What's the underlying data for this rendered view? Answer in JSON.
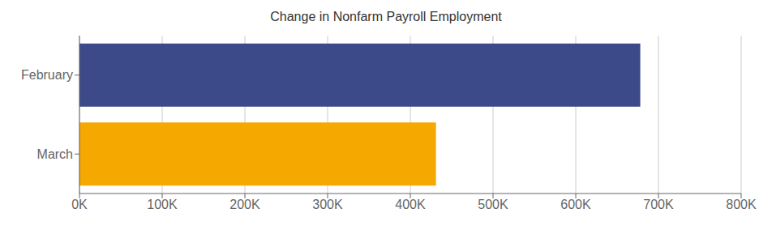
{
  "chart_data": {
    "type": "bar",
    "orientation": "horizontal",
    "title": "Change in Nonfarm Payroll Employment",
    "categories": [
      "March",
      "February"
    ],
    "values": [
      431000,
      678000
    ],
    "colors": [
      "#f5a800",
      "#3d4a8a"
    ],
    "xlim": [
      0,
      800000
    ],
    "xticks": [
      {
        "value": 0,
        "label": "0K"
      },
      {
        "value": 100000,
        "label": "100K"
      },
      {
        "value": 200000,
        "label": "200K"
      },
      {
        "value": 300000,
        "label": "300K"
      },
      {
        "value": 400000,
        "label": "400K"
      },
      {
        "value": 500000,
        "label": "500K"
      },
      {
        "value": 600000,
        "label": "600K"
      },
      {
        "value": 700000,
        "label": "700K"
      },
      {
        "value": 800000,
        "label": "800K"
      }
    ],
    "grid": true
  }
}
